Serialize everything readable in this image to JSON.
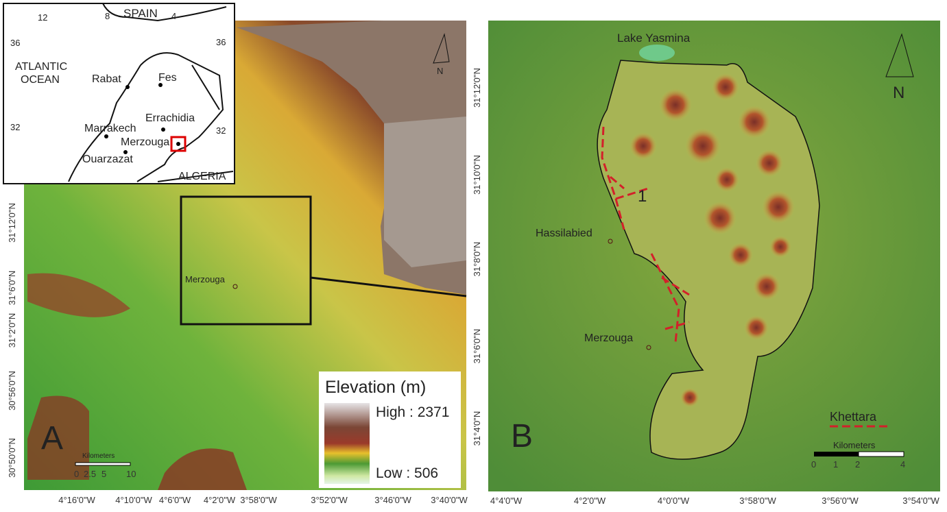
{
  "panel_a": {
    "label": "A",
    "north": "N",
    "place": "Merzouga",
    "inset": {
      "lon_ticks": [
        "12",
        "8",
        "4"
      ],
      "country_top": "SPAIN",
      "lat_left": "36",
      "lat_right": "36",
      "ocean": [
        "ATLANTIC",
        "OCEAN"
      ],
      "cities": [
        "Rabat",
        "Fes",
        "Errachidia",
        "Marrakech",
        "Merzouga",
        "Ouarzazat"
      ],
      "lat_left_2": "32",
      "lat_right_2": "32",
      "country_bottom": "ALGERIA"
    },
    "legend": {
      "title": "Elevation (m)",
      "high": "High : 2371",
      "low": "Low : 506"
    },
    "scale": {
      "title": "Kilometers",
      "ticks": [
        "0",
        "2.5",
        "5",
        "10"
      ]
    },
    "lat_ticks": [
      "31°12'0\"N",
      "31°6'0\"N",
      "31°2'0\"N",
      "30°56'0\"N",
      "30°50'0\"N"
    ],
    "lon_ticks": [
      "4°16'0\"W",
      "4°10'0\"W",
      "4°6'0\"W",
      "4°2'0\"W",
      "3°58'0\"W",
      "3°52'0\"W",
      "3°46'0\"W",
      "3°40'0\"W"
    ]
  },
  "panel_b": {
    "label": "B",
    "north": "N",
    "lake": "Lake Yasmina",
    "places": [
      "Hassilabied",
      "Merzouga"
    ],
    "marker": "1",
    "legend": "Khettara",
    "scale": {
      "title": "Kilometers",
      "ticks": [
        "0",
        "1",
        "2",
        "4"
      ]
    },
    "lat_ticks": [
      "31°12'0\"N",
      "31°10'0\"N",
      "31°8'0\"N",
      "31°6'0\"N",
      "31°4'0\"N"
    ],
    "lon_ticks": [
      "4°4'0\"W",
      "4°2'0\"W",
      "4°0'0\"W",
      "3°58'0\"W",
      "3°56'0\"W",
      "3°54'0\"W"
    ]
  }
}
